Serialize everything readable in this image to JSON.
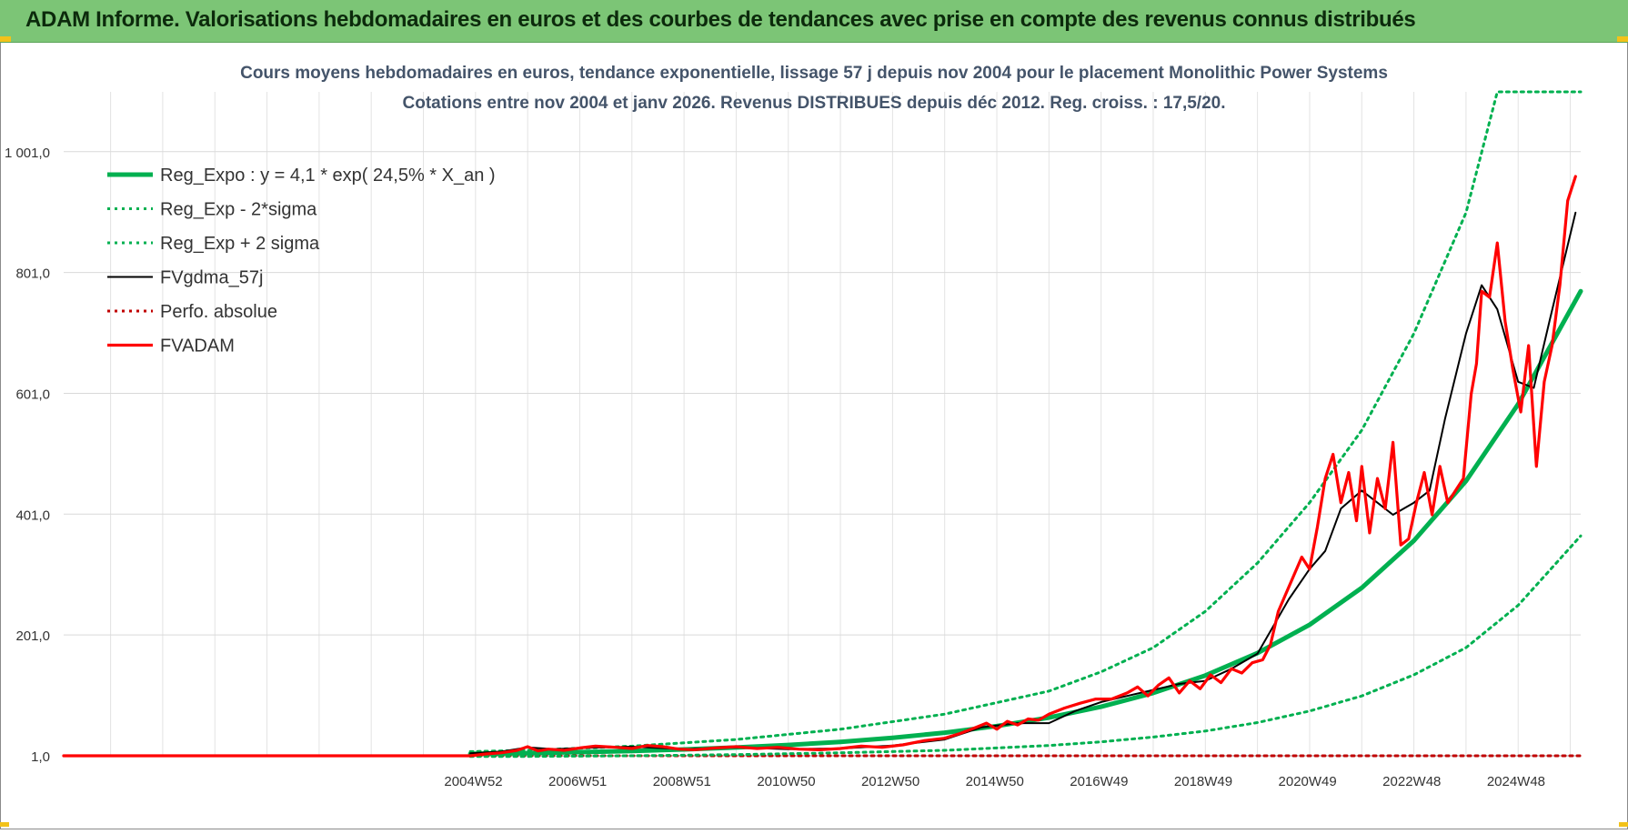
{
  "banner": {
    "title": "ADAM Informe. Valorisations hebdomadaires en euros et des courbes de tendances avec prise en compte des revenus connus distribués"
  },
  "colors": {
    "banner_bg": "#7cc576",
    "trend_green": "#00b050",
    "smooth_black": "#000000",
    "price_red": "#ff0000",
    "grid": "#d9d9d9"
  },
  "chart_data": {
    "type": "line",
    "title_line1": "Cours moyens hebdomadaires en euros, tendance exponentielle, lissage 57 j depuis nov 2004 pour le placement Monolithic Power Systems",
    "title_line2": "Cotations entre nov 2004 et janv 2026. Revenus DISTRIBUES depuis déc 2012. Reg. croiss. : 17,5/20.",
    "xlabel": "",
    "ylabel": "",
    "ylim": [
      1,
      1100
    ],
    "y_ticks": [
      {
        "value": 1,
        "label": "1,0"
      },
      {
        "value": 201,
        "label": "201,0"
      },
      {
        "value": 401,
        "label": "401,0"
      },
      {
        "value": 601,
        "label": "601,0"
      },
      {
        "value": 801,
        "label": "801,0"
      },
      {
        "value": 1001,
        "label": "1 001,0"
      }
    ],
    "xlim": [
      1997.1,
      2026.2
    ],
    "x_ticks": [
      {
        "value": 2004.96,
        "label": "2004W52"
      },
      {
        "value": 2006.96,
        "label": "2006W51"
      },
      {
        "value": 2008.96,
        "label": "2008W51"
      },
      {
        "value": 2010.96,
        "label": "2010W50"
      },
      {
        "value": 2012.96,
        "label": "2012W50"
      },
      {
        "value": 2014.96,
        "label": "2014W50"
      },
      {
        "value": 2016.96,
        "label": "2016W49"
      },
      {
        "value": 2018.96,
        "label": "2018W49"
      },
      {
        "value": 2020.96,
        "label": "2020W49"
      },
      {
        "value": 2022.96,
        "label": "2022W48"
      },
      {
        "value": 2024.96,
        "label": "2024W48"
      }
    ],
    "legend_position": "top-left",
    "series": [
      {
        "name": "Reg_Expo : y = 4,1 * exp( 24,5% *  X_an )",
        "style": "solid-thick",
        "color": "#00b050",
        "x": [
          2004.9,
          2006,
          2007,
          2008,
          2009,
          2010,
          2011,
          2012,
          2013,
          2014,
          2015,
          2016,
          2017,
          2018,
          2019,
          2020,
          2021,
          2022,
          2023,
          2024,
          2025,
          2026.2
        ],
        "y": [
          4.1,
          5.4,
          7.0,
          9.0,
          11.5,
          14.7,
          18.9,
          24.1,
          30.8,
          39.3,
          50.2,
          64.2,
          82.1,
          105,
          134,
          171,
          218,
          279,
          357,
          456,
          583,
          770
        ]
      },
      {
        "name": "Reg_Exp - 2*sigma",
        "style": "dotted",
        "color": "#00b050",
        "x": [
          2004.9,
          2006,
          2008,
          2010,
          2012,
          2014,
          2016,
          2017,
          2018,
          2019,
          2020,
          2021,
          2022,
          2023,
          2024,
          2025,
          2026.2
        ],
        "y": [
          0,
          0,
          1,
          3,
          6,
          10,
          18,
          24,
          32,
          42,
          56,
          75,
          100,
          135,
          180,
          250,
          365
        ]
      },
      {
        "name": "Reg_Exp + 2 sigma",
        "style": "dotted",
        "color": "#00b050",
        "x": [
          2004.9,
          2006,
          2008,
          2010,
          2012,
          2014,
          2016,
          2017,
          2018,
          2019,
          2020,
          2021,
          2022,
          2023,
          2024,
          2024.6,
          2025,
          2026.2
        ],
        "y": [
          8,
          10,
          17,
          28,
          45,
          70,
          108,
          140,
          180,
          240,
          320,
          420,
          540,
          700,
          900,
          1100,
          1100,
          1100
        ]
      },
      {
        "name": "FVgdma_57j",
        "style": "solid-thin",
        "color": "#000000",
        "x": [
          2004.9,
          2005.5,
          2006,
          2006.5,
          2007,
          2008,
          2009,
          2010,
          2011,
          2012,
          2013,
          2014,
          2014.7,
          2015.4,
          2016,
          2016.5,
          2017,
          2017.5,
          2018,
          2018.5,
          2019,
          2019.5,
          2020,
          2020.3,
          2020.6,
          2021,
          2021.3,
          2021.6,
          2022,
          2022.3,
          2022.6,
          2023,
          2023.3,
          2023.6,
          2024,
          2024.3,
          2024.6,
          2025,
          2025.3,
          2025.6,
          2026.1
        ],
        "y": [
          5,
          8,
          15,
          12,
          14,
          16,
          12,
          15,
          12,
          13,
          18,
          28,
          48,
          55,
          55,
          75,
          90,
          100,
          110,
          120,
          125,
          145,
          170,
          215,
          260,
          310,
          340,
          410,
          440,
          420,
          400,
          420,
          440,
          560,
          700,
          780,
          740,
          620,
          610,
          720,
          900
        ]
      },
      {
        "name": "Perfo. absolue",
        "style": "dotted",
        "color": "#c00000",
        "x": [
          1997.1,
          2026.2
        ],
        "y": [
          1,
          1
        ]
      },
      {
        "name": "FVADAM",
        "style": "solid-medium",
        "color": "#ff0000",
        "x": [
          1997.1,
          2004.9,
          2005.2,
          2005.5,
          2005.8,
          2006,
          2006.2,
          2006.4,
          2006.7,
          2007,
          2007.3,
          2007.7,
          2008,
          2008.3,
          2008.6,
          2008.9,
          2009.2,
          2009.6,
          2010,
          2010.4,
          2010.8,
          2011.2,
          2011.6,
          2012,
          2012.4,
          2012.8,
          2013.2,
          2013.6,
          2014,
          2014.3,
          2014.6,
          2014.8,
          2015,
          2015.2,
          2015.4,
          2015.6,
          2015.8,
          2016,
          2016.3,
          2016.6,
          2016.9,
          2017.2,
          2017.5,
          2017.7,
          2017.9,
          2018.1,
          2018.3,
          2018.5,
          2018.7,
          2018.9,
          2019.1,
          2019.3,
          2019.5,
          2019.7,
          2019.9,
          2020.1,
          2020.25,
          2020.4,
          2020.55,
          2020.7,
          2020.85,
          2021.0,
          2021.15,
          2021.3,
          2021.45,
          2021.6,
          2021.75,
          2021.9,
          2022.0,
          2022.15,
          2022.3,
          2022.45,
          2022.6,
          2022.75,
          2022.9,
          2023.05,
          2023.2,
          2023.35,
          2023.5,
          2023.65,
          2023.8,
          2023.95,
          2024.1,
          2024.2,
          2024.3,
          2024.45,
          2024.6,
          2024.75,
          2024.9,
          2025.05,
          2025.2,
          2025.35,
          2025.5,
          2025.65,
          2025.8,
          2025.95,
          2026.1
        ],
        "y": [
          1,
          1,
          4,
          6,
          10,
          16,
          9,
          12,
          10,
          14,
          17,
          15,
          13,
          18,
          16,
          12,
          11,
          14,
          16,
          13,
          15,
          12,
          11,
          13,
          17,
          15,
          19,
          26,
          30,
          38,
          48,
          55,
          45,
          58,
          52,
          62,
          60,
          70,
          80,
          88,
          95,
          95,
          105,
          115,
          100,
          118,
          130,
          105,
          125,
          112,
          135,
          122,
          145,
          138,
          155,
          160,
          185,
          240,
          270,
          300,
          330,
          310,
          380,
          460,
          500,
          420,
          470,
          390,
          480,
          370,
          460,
          410,
          520,
          350,
          360,
          420,
          470,
          400,
          480,
          420,
          440,
          460,
          600,
          650,
          770,
          760,
          850,
          720,
          640,
          570,
          680,
          480,
          620,
          680,
          780,
          920,
          960
        ]
      }
    ]
  }
}
